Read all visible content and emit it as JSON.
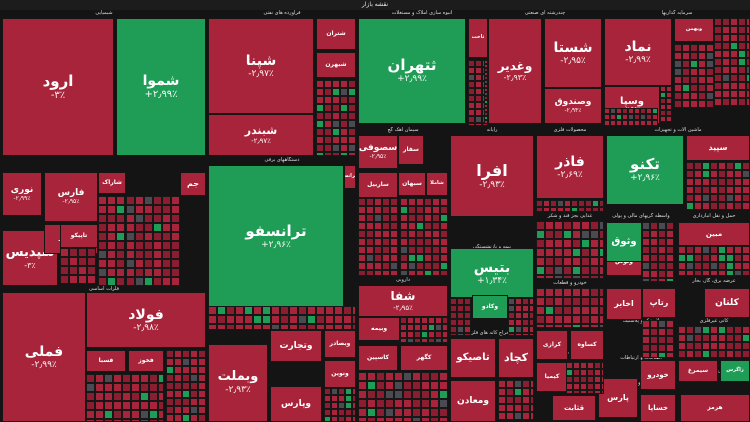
{
  "header": {
    "title": "نقشه بازار"
  },
  "colors": {
    "down": "#a8243a",
    "down_dark": "#8a1e30",
    "up": "#1f9d57",
    "neutral": "#4a4a52"
  },
  "chart_data": {
    "type": "treemap",
    "title": "نقشه بازار",
    "sectors": [
      "شیمیایی",
      "فرآورده های نفتی",
      "انبوه سازی املاک و مستغلات",
      "چندرشته ای صنعتی",
      "سرمایه گذاریها",
      "دستگاههای برقی",
      "سیمان آهک گچ",
      "رایانه",
      "محصولات فلزی",
      "ماشین آلات و تجهیزات",
      "فلزات اساسی",
      "دارویی",
      "بیمه و بازنشستگی",
      "غذایی بجز قند و شکر",
      "واسطه گریهای مالی و پولی",
      "حمل و نقل انبارداری",
      "واسطه گری‌های مالی",
      "مخابرات",
      "بانکها و موسسات اعتباری",
      "خودرو و قطعات",
      "استخراج کانه های فلزی",
      "کاشی و سرامیک",
      "لاستیک و پلاستیک",
      "کانی غیرفلزی",
      "استخراج نفت گاز",
      "عرضه برق، گاز، بخار",
      "اطلاعات و ارتباطات",
      "زراعت",
      "خرده فروشی",
      "انتشار و چاپ",
      "قند و شکر",
      "فعالیتهای هنری"
    ],
    "tiles": [
      {
        "symbol": "ارود",
        "change": -3.0,
        "change_label": "-۳٪",
        "sector": "شیمیایی"
      },
      {
        "symbol": "شموا",
        "change": 2.99,
        "change_label": "+۲٫۹۹٪",
        "sector": "شیمیایی"
      },
      {
        "symbol": "نوری",
        "change": -2.99,
        "change_label": "-۲٫۹۹٪",
        "sector": "شیمیایی"
      },
      {
        "symbol": "فارس",
        "change": -2.95,
        "change_label": "-۲٫۹۵٪",
        "sector": "شیمیایی"
      },
      {
        "symbol": "شپدیس",
        "change": -3.0,
        "change_label": "-۳٪",
        "sector": "شیمیایی"
      },
      {
        "symbol": "شبریز",
        "change": -2.98,
        "change_label": "-۲٫۹۸٪",
        "sector": "شیمیایی"
      },
      {
        "symbol": "شاراک",
        "change": -2.97,
        "change_label": "",
        "sector": "شیمیایی"
      },
      {
        "symbol": "جم",
        "change": -2.96,
        "change_label": "",
        "sector": "شیمیایی"
      },
      {
        "symbol": "تاپیکو",
        "change": -2.94,
        "change_label": "",
        "sector": "شیمیایی"
      },
      {
        "symbol": "شپنا",
        "change": -2.97,
        "change_label": "-۲٫۹۷٪",
        "sector": "فرآورده های نفتی"
      },
      {
        "symbol": "شبندر",
        "change": -2.97,
        "change_label": "-۲٫۹۷٪",
        "sector": "فرآورده های نفتی"
      },
      {
        "symbol": "شتران",
        "change": -2.95,
        "change_label": "",
        "sector": "فرآورده های نفتی"
      },
      {
        "symbol": "شبهرن",
        "change": -2.94,
        "change_label": "",
        "sector": "فرآورده های نفتی"
      },
      {
        "symbol": "ثتهران",
        "change": 2.99,
        "change_label": "+۲٫۹۹٪",
        "sector": "انبوه سازی املاک و مستغلات"
      },
      {
        "symbol": "ثاخت",
        "change": -2.9,
        "change_label": "",
        "sector": "انبوه سازی املاک و مستغلات"
      },
      {
        "symbol": "وغدیر",
        "change": -2.93,
        "change_label": "-۲٫۹۳٪",
        "sector": "چندرشته ای صنعتی"
      },
      {
        "symbol": "شستا",
        "change": -2.95,
        "change_label": "-۲٫۹۵٪",
        "sector": "چندرشته ای صنعتی"
      },
      {
        "symbol": "وصندوق",
        "change": -2.94,
        "change_label": "-۲٫۹۴٪",
        "sector": "چندرشته ای صنعتی"
      },
      {
        "symbol": "نماد",
        "change": -2.99,
        "change_label": "-۲٫۹۹٪",
        "sector": "سرمایه گذاریها"
      },
      {
        "symbol": "وسپا",
        "change": -2.95,
        "change_label": "-۲٫۹۵٪",
        "sector": "سرمایه گذاریها"
      },
      {
        "symbol": "وبهمن",
        "change": -2.9,
        "change_label": "",
        "sector": "سرمایه گذاریها"
      },
      {
        "symbol": "ترانسفو",
        "change": 2.96,
        "change_label": "+۲٫۹۶٪",
        "sector": "دستگاههای برقی"
      },
      {
        "symbol": "بترانس",
        "change": -2.9,
        "change_label": "",
        "sector": "دستگاههای برقی"
      },
      {
        "symbol": "سصوفی",
        "change": -2.95,
        "change_label": "-۲٫۹۵٪",
        "sector": "سیمان آهک گچ"
      },
      {
        "symbol": "سفار",
        "change": -2.9,
        "change_label": "",
        "sector": "سیمان آهک گچ"
      },
      {
        "symbol": "ساربیل",
        "change": -2.9,
        "change_label": "",
        "sector": "سیمان آهک گچ"
      },
      {
        "symbol": "افرا",
        "change": -2.93,
        "change_label": "-۲٫۹۳٪",
        "sector": "رایانه"
      },
      {
        "symbol": "فاذر",
        "change": -2.69,
        "change_label": "-۲٫۶۹٪",
        "sector": "محصولات فلزی"
      },
      {
        "symbol": "تکنو",
        "change": 2.96,
        "change_label": "+۲٫۹۶٪",
        "sector": "ماشین آلات و تجهیزات"
      },
      {
        "symbol": "سپید",
        "change": -2.9,
        "change_label": "",
        "sector": "ماشین آلات و تجهیزات"
      },
      {
        "symbol": "فولاد",
        "change": -2.98,
        "change_label": "-۲٫۹۸٪",
        "sector": "فلزات اساسی"
      },
      {
        "symbol": "فملی",
        "change": -2.99,
        "change_label": "-۲٫۹۹٪",
        "sector": "فلزات اساسی"
      },
      {
        "symbol": "فسبا",
        "change": -2.9,
        "change_label": "",
        "sector": "فلزات اساسی"
      },
      {
        "symbol": "فخوز",
        "change": -2.9,
        "change_label": "",
        "sector": "فلزات اساسی"
      },
      {
        "symbol": "شفا",
        "change": -2.95,
        "change_label": "-۲٫۹۵٪",
        "sector": "دارویی"
      },
      {
        "symbol": "وبیمه",
        "change": -2.9,
        "change_label": "",
        "sector": "بیمه و بازنشستگی"
      },
      {
        "symbol": "بتیس",
        "change": 1.34,
        "change_label": "+۱٫۳۴٪",
        "sector": "بیمه و بازنشستگی"
      },
      {
        "symbol": "وتوش",
        "change": -2.9,
        "change_label": "",
        "sector": "مخابرات"
      },
      {
        "symbol": "وثوق",
        "change": 2.1,
        "change_label": "",
        "sector": "واسطه گری‌های مالی"
      },
      {
        "symbol": "وبملت",
        "change": -2.93,
        "change_label": "-۲٫۹۳٪",
        "sector": "بانکها و موسسات اعتباری"
      },
      {
        "symbol": "وتجارت",
        "change": -2.9,
        "change_label": "",
        "sector": "بانکها و موسسات اعتباری"
      },
      {
        "symbol": "وپارس",
        "change": -2.9,
        "change_label": "",
        "sector": "بانکها و موسسات اعتباری"
      },
      {
        "symbol": "وبصادر",
        "change": -2.9,
        "change_label": "",
        "sector": "بانکها و موسسات اعتباری"
      },
      {
        "symbol": "ونوین",
        "change": -2.9,
        "change_label": "",
        "sector": "بانکها و موسسات اعتباری"
      },
      {
        "symbol": "تاصیکو",
        "change": -2.9,
        "change_label": "",
        "sector": "استخراج کانه های فلزی"
      },
      {
        "symbol": "کچاد",
        "change": -2.9,
        "change_label": "",
        "sector": "استخراج کانه های فلزی"
      },
      {
        "symbol": "ومعادن",
        "change": -2.9,
        "change_label": "",
        "sector": "استخراج کانه های فلزی"
      },
      {
        "symbol": "اخابر",
        "change": -2.9,
        "change_label": "",
        "sector": "مخابرات"
      },
      {
        "symbol": "رتاپ",
        "change": -2.9,
        "change_label": "",
        "sector": "اطلاعات و ارتباطات"
      },
      {
        "symbol": "کیمیا",
        "change": -2.9,
        "change_label": "",
        "sector": "کانی غیرفلزی"
      },
      {
        "symbol": "کرازی",
        "change": -2.9,
        "change_label": "",
        "sector": "کاشی و سرامیک"
      },
      {
        "symbol": "کساوه",
        "change": -2.9,
        "change_label": "",
        "sector": "کاشی و سرامیک"
      },
      {
        "symbol": "پارس",
        "change": -2.9,
        "change_label": "",
        "sector": "لاستیک و پلاستیک"
      },
      {
        "symbol": "خودرو",
        "change": -2.9,
        "change_label": "",
        "sector": "خودرو و قطعات"
      },
      {
        "symbol": "خساپا",
        "change": -2.9,
        "change_label": "",
        "sector": "خودرو و قطعات"
      },
      {
        "symbol": "سبهان",
        "change": -2.9,
        "change_label": "",
        "sector": "دارویی"
      },
      {
        "symbol": "شاملا",
        "change": -2.9,
        "change_label": "",
        "sector": "دارویی"
      },
      {
        "symbol": "وکادو",
        "change": 1.5,
        "change_label": "",
        "sector": "واسطه گری‌های مالی"
      },
      {
        "symbol": "مبین",
        "change": -2.9,
        "change_label": "",
        "sector": "عرضه برق، گاز، بخار"
      },
      {
        "symbol": "کلتان",
        "change": -2.9,
        "change_label": "",
        "sector": "کانی غیرفلزی"
      },
      {
        "symbol": "کاسپین",
        "change": -2.9,
        "change_label": "",
        "sector": "استخراج کانه های فلزی"
      },
      {
        "symbol": "کگهر",
        "change": -2.9,
        "change_label": "",
        "sector": "استخراج کانه های فلزی"
      },
      {
        "symbol": "سیمرغ",
        "change": -2.9,
        "change_label": "",
        "sector": "زراعت"
      },
      {
        "symbol": "زاگرس",
        "change": 0.8,
        "change_label": "",
        "sector": "زراعت"
      },
      {
        "symbol": "قثابت",
        "change": -2.9,
        "change_label": "",
        "sector": "قند و شکر"
      },
      {
        "symbol": "هرمز",
        "change": -2.9,
        "change_label": "",
        "sector": "فعالیتهای هنری"
      }
    ]
  },
  "legend_note": ""
}
